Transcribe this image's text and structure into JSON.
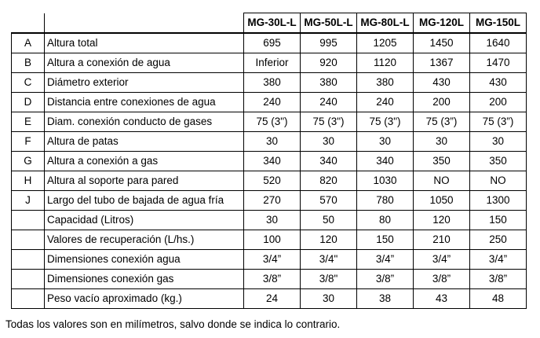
{
  "table": {
    "headers": [
      "MG-30L-L",
      "MG-50L-L",
      "MG-80L-L",
      "MG-120L",
      "MG-150L"
    ],
    "rows": [
      {
        "code": "A",
        "label": "Altura total",
        "values": [
          "695",
          "995",
          "1205",
          "1450",
          "1640"
        ]
      },
      {
        "code": "B",
        "label": "Altura a conexión de agua",
        "values": [
          "Inferior",
          "920",
          "1120",
          "1367",
          "1470"
        ]
      },
      {
        "code": "C",
        "label": "Diámetro exterior",
        "values": [
          "380",
          "380",
          "380",
          "430",
          "430"
        ]
      },
      {
        "code": "D",
        "label": "Distancia entre conexiones de agua",
        "values": [
          "240",
          "240",
          "240",
          "200",
          "200"
        ]
      },
      {
        "code": "E",
        "label": "Diam. conexión conducto de gases",
        "values": [
          "75 (3\")",
          "75 (3\")",
          "75 (3\")",
          "75 (3”)",
          "75 (3”)"
        ]
      },
      {
        "code": "F",
        "label": "Altura de patas",
        "values": [
          "30",
          "30",
          "30",
          "30",
          "30"
        ]
      },
      {
        "code": "G",
        "label": "Altura a conexión a gas",
        "values": [
          "340",
          "340",
          "340",
          "350",
          "350"
        ]
      },
      {
        "code": "H",
        "label": "Altura al soporte para pared",
        "values": [
          "520",
          "820",
          "1030",
          "NO",
          "NO"
        ]
      },
      {
        "code": "J",
        "label": "Largo del tubo de bajada de agua fría",
        "values": [
          "270",
          "570",
          "780",
          "1050",
          "1300"
        ]
      },
      {
        "code": "",
        "label": "Capacidad (Litros)",
        "values": [
          "30",
          "50",
          "80",
          "120",
          "150"
        ]
      },
      {
        "code": "",
        "label": "Valores de recuperación (L/hs.)",
        "values": [
          "100",
          "120",
          "150",
          "210",
          "250"
        ]
      },
      {
        "code": "",
        "label": "Dimensiones conexión agua",
        "values": [
          "3/4”",
          "3/4\"",
          "3/4”",
          "3/4”",
          "3/4”"
        ]
      },
      {
        "code": "",
        "label": "Dimensiones conexión gas",
        "values": [
          "3/8”",
          "3/8\"",
          "3/8”",
          "3/8”",
          "3/8”"
        ]
      },
      {
        "code": "",
        "label": "Peso vacío aproximado (kg.)",
        "values": [
          "24",
          "30",
          "38",
          "43",
          "48"
        ]
      }
    ]
  },
  "footnote": "Todas los valores son en milímetros, salvo donde se indica lo contrario."
}
